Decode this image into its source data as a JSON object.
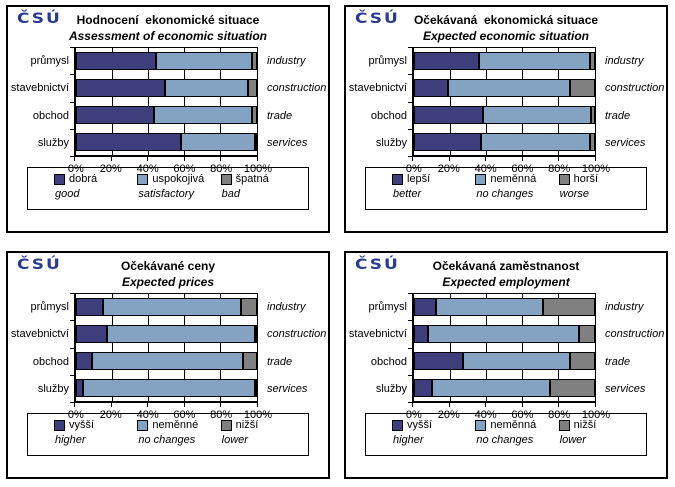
{
  "logo_text": "ČSÚ",
  "colors": {
    "dark_blue": "#3E3E7C",
    "light_blue": "#84A3C2",
    "gray": "#808080",
    "logo_blue": "#2A3B8F",
    "border": "#000000"
  },
  "chart_data": [
    {
      "type": "bar",
      "stacked": true,
      "orientation": "horizontal",
      "title_cs": "Hodnocení  ekonomické situace",
      "title_en": "Assessment of economic situation",
      "categories_cs": [
        "průmysl",
        "stavebnictví",
        "obchod",
        "služby"
      ],
      "categories_en": [
        "industry",
        "construction",
        "trade",
        "services"
      ],
      "xlim": [
        0,
        100
      ],
      "x_ticks": [
        "0%",
        "20%",
        "40%",
        "60%",
        "80%",
        "100%"
      ],
      "legend_position": "bottom",
      "series": [
        {
          "name_cs": "dobrá",
          "name_en": "good",
          "color": "#3E3E7C",
          "values": [
            44,
            49,
            43,
            58
          ]
        },
        {
          "name_cs": "uspokojivá",
          "name_en": "satisfactory",
          "color": "#84A3C2",
          "values": [
            53,
            46,
            54,
            41
          ]
        },
        {
          "name_cs": "špatná",
          "name_en": "bad",
          "color": "#808080",
          "values": [
            3,
            5,
            3,
            1
          ]
        }
      ]
    },
    {
      "type": "bar",
      "stacked": true,
      "orientation": "horizontal",
      "title_cs": "Očekávaná  ekonomická situace",
      "title_en": "Expected economic situation",
      "categories_cs": [
        "průmysl",
        "stavebnictví",
        "obchod",
        "služby"
      ],
      "categories_en": [
        "industry",
        "construction",
        "trade",
        "services"
      ],
      "xlim": [
        0,
        100
      ],
      "x_ticks": [
        "0%",
        "20%",
        "40%",
        "60%",
        "80%",
        "100%"
      ],
      "legend_position": "bottom",
      "series": [
        {
          "name_cs": "lepší",
          "name_en": "better",
          "color": "#3E3E7C",
          "values": [
            36,
            19,
            38,
            37
          ]
        },
        {
          "name_cs": "neměnná",
          "name_en": "no changes",
          "color": "#84A3C2",
          "values": [
            61,
            67,
            60,
            60
          ]
        },
        {
          "name_cs": "horší",
          "name_en": "worse",
          "color": "#808080",
          "values": [
            3,
            14,
            2,
            3
          ]
        }
      ]
    },
    {
      "type": "bar",
      "stacked": true,
      "orientation": "horizontal",
      "title_cs": "Očekávané ceny",
      "title_en": "Expected prices",
      "categories_cs": [
        "průmysl",
        "stavebnictví",
        "obchod",
        "služby"
      ],
      "categories_en": [
        "industry",
        "construction",
        "trade",
        "services"
      ],
      "xlim": [
        0,
        100
      ],
      "x_ticks": [
        "0%",
        "20%",
        "40%",
        "60%",
        "80%",
        "100%"
      ],
      "legend_position": "bottom",
      "series": [
        {
          "name_cs": "vyšší",
          "name_en": "higher",
          "color": "#3E3E7C",
          "values": [
            15,
            17,
            9,
            4
          ]
        },
        {
          "name_cs": "neměnné",
          "name_en": "no changes",
          "color": "#84A3C2",
          "values": [
            76,
            82,
            83,
            95
          ]
        },
        {
          "name_cs": "nižší",
          "name_en": "lower",
          "color": "#808080",
          "values": [
            9,
            1,
            8,
            1
          ]
        }
      ]
    },
    {
      "type": "bar",
      "stacked": true,
      "orientation": "horizontal",
      "title_cs": "Očekávaná zaměstnanost",
      "title_en": "Expected employment",
      "categories_cs": [
        "průmysl",
        "stavebnictví",
        "obchod",
        "služby"
      ],
      "categories_en": [
        "industry",
        "construction",
        "trade",
        "services"
      ],
      "xlim": [
        0,
        100
      ],
      "x_ticks": [
        "0%",
        "20%",
        "40%",
        "60%",
        "80%",
        "100%"
      ],
      "legend_position": "bottom",
      "series": [
        {
          "name_cs": "vyšší",
          "name_en": "higher",
          "color": "#3E3E7C",
          "values": [
            12,
            8,
            27,
            10
          ]
        },
        {
          "name_cs": "neměnná",
          "name_en": "no changes",
          "color": "#84A3C2",
          "values": [
            59,
            83,
            59,
            65
          ]
        },
        {
          "name_cs": "nižší",
          "name_en": "lower",
          "color": "#808080",
          "values": [
            29,
            9,
            14,
            25
          ]
        }
      ]
    }
  ]
}
